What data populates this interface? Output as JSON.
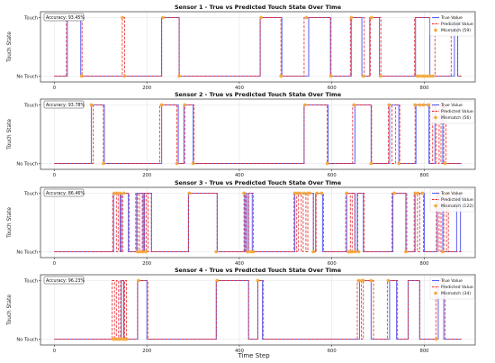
{
  "figure": {
    "xlabel_shared": "Time Step"
  },
  "chart_data": [
    {
      "type": "line",
      "title": "Sensor 1 - True vs Predicted Touch State Over Time",
      "ylabel": "Touch State",
      "xlim": [
        -30,
        910
      ],
      "ylim": [
        -0.1,
        1.1
      ],
      "x_ticks": [
        0,
        200,
        400,
        600,
        800
      ],
      "y_ticks": [
        {
          "value": 0,
          "label": "No Touch"
        },
        {
          "value": 1,
          "label": "Touch"
        }
      ],
      "grid": true,
      "accuracy": "Accuracy: 93.45%",
      "legend": {
        "position": "top-right",
        "entries": [
          "True Value",
          "Predicted Value",
          "Mismatch (59)"
        ]
      },
      "series": [
        {
          "name": "True Value",
          "color": "#5b5bf0",
          "style": "solid",
          "segments": [
            [
              28,
              57
            ],
            [
              232,
              270
            ],
            [
              445,
              492
            ],
            [
              550,
              597
            ],
            [
              642,
              665
            ],
            [
              682,
              703
            ],
            [
              781,
              812
            ],
            [
              865,
              872
            ]
          ]
        },
        {
          "name": "Predicted Value",
          "color": "#e8262a",
          "style": "dashed",
          "segments": [
            [
              26,
              60
            ],
            [
              147,
              152
            ],
            [
              232,
              270
            ],
            [
              445,
              490
            ],
            [
              540,
              598
            ],
            [
              640,
              670
            ],
            [
              683,
              706
            ],
            [
              779,
              823
            ],
            [
              858,
              872
            ]
          ]
        },
        {
          "name": "Mismatch (59)",
          "color": "#f4a93a",
          "style": "markers",
          "points": [
            [
              27,
              1
            ],
            [
              59,
              0
            ],
            [
              147,
              1
            ],
            [
              152,
              0
            ],
            [
              235,
              1
            ],
            [
              270,
              0
            ],
            [
              447,
              1
            ],
            [
              490,
              0
            ],
            [
              545,
              1
            ],
            [
              598,
              0
            ],
            [
              642,
              1
            ],
            [
              668,
              0
            ],
            [
              686,
              1
            ],
            [
              705,
              0
            ],
            [
              785,
              0
            ],
            [
              790,
              0
            ],
            [
              796,
              0
            ],
            [
              800,
              0
            ],
            [
              806,
              0
            ],
            [
              812,
              0
            ],
            [
              818,
              0
            ],
            [
              860,
              1
            ],
            [
              870,
              1
            ]
          ]
        }
      ]
    },
    {
      "type": "line",
      "title": "Sensor 2 - True vs Predicted Touch State Over Time",
      "ylabel": "Touch State",
      "xlim": [
        -30,
        910
      ],
      "ylim": [
        -0.1,
        1.1
      ],
      "x_ticks": [
        0,
        200,
        400,
        600,
        800
      ],
      "y_ticks": [
        {
          "value": 0,
          "label": "No Touch"
        },
        {
          "value": 1,
          "label": "Touch"
        }
      ],
      "grid": true,
      "accuracy": "Accuracy: 93.78%",
      "legend": {
        "position": "top-right",
        "entries": [
          "True Value",
          "Predicted Value",
          "Mismatch (56)"
        ]
      },
      "series": [
        {
          "name": "True Value",
          "color": "#5b5bf0",
          "style": "solid",
          "segments": [
            [
              80,
              108
            ],
            [
              232,
              268
            ],
            [
              280,
              300
            ],
            [
              540,
              592
            ],
            [
              650,
              685
            ],
            [
              725,
              745
            ],
            [
              782,
              810
            ],
            [
              823,
              840
            ]
          ]
        },
        {
          "name": "Predicted Value",
          "color": "#e8262a",
          "style": "dashed",
          "segments": [
            [
              84,
              106
            ],
            [
              228,
              265
            ],
            [
              282,
              302
            ],
            [
              540,
              590
            ],
            [
              645,
              686
            ],
            [
              722,
              730
            ],
            [
              738,
              747
            ],
            [
              780,
              812
            ],
            [
              818,
              826
            ],
            [
              832,
              836
            ],
            [
              842,
              847
            ]
          ]
        },
        {
          "name": "Mismatch (56)",
          "color": "#f4a93a",
          "style": "markers",
          "points": [
            [
              80,
              1
            ],
            [
              106,
              0
            ],
            [
              232,
              1
            ],
            [
              265,
              0
            ],
            [
              282,
              1
            ],
            [
              300,
              0
            ],
            [
              542,
              1
            ],
            [
              590,
              0
            ],
            [
              648,
              1
            ],
            [
              685,
              0
            ],
            [
              724,
              1
            ],
            [
              745,
              0
            ],
            [
              780,
              1
            ],
            [
              790,
              1
            ],
            [
              798,
              1
            ],
            [
              808,
              1
            ],
            [
              814,
              1
            ],
            [
              826,
              1
            ],
            [
              836,
              1
            ],
            [
              845,
              0
            ]
          ]
        }
      ]
    },
    {
      "type": "line",
      "title": "Sensor 3 - True vs Predicted Touch State Over Time",
      "ylabel": "Touch State",
      "xlim": [
        -30,
        910
      ],
      "ylim": [
        -0.1,
        1.1
      ],
      "x_ticks": [
        0,
        200,
        400,
        600,
        800
      ],
      "y_ticks": [
        {
          "value": 0,
          "label": "No Touch"
        },
        {
          "value": 1,
          "label": "Touch"
        }
      ],
      "grid": true,
      "accuracy": "Accuracy: 86.46%",
      "legend": {
        "position": "top-right",
        "entries": [
          "True Value",
          "Predicted Value",
          "Mismatch (122)"
        ]
      },
      "series": [
        {
          "name": "True Value",
          "color": "#5b5bf0",
          "style": "solid",
          "segments": [
            [
              128,
              142
            ],
            [
              145,
              160
            ],
            [
              178,
              192
            ],
            [
              195,
              210
            ],
            [
              290,
              352
            ],
            [
              412,
              416
            ],
            [
              420,
              428
            ],
            [
              520,
              560
            ],
            [
              565,
              580
            ],
            [
              632,
              650
            ],
            [
              655,
              668
            ],
            [
              732,
              760
            ],
            [
              780,
              800
            ],
            [
              828,
              840
            ],
            [
              870,
              878
            ]
          ]
        },
        {
          "name": "Predicted Value",
          "color": "#e8262a",
          "style": "dashed",
          "segments": [
            [
              126,
              134
            ],
            [
              138,
              144
            ],
            [
              148,
              162
            ],
            [
              176,
              180
            ],
            [
              184,
              190
            ],
            [
              194,
              199
            ],
            [
              203,
              210
            ],
            [
              290,
              352
            ],
            [
              410,
              414
            ],
            [
              420,
              430
            ],
            [
              518,
              524
            ],
            [
              528,
              534
            ],
            [
              538,
              544
            ],
            [
              548,
              560
            ],
            [
              566,
              582
            ],
            [
              630,
              640
            ],
            [
              644,
              650
            ],
            [
              656,
              670
            ],
            [
              730,
              762
            ],
            [
              778,
              785
            ],
            [
              790,
              798
            ],
            [
              826,
              832
            ],
            [
              836,
              842
            ],
            [
              848,
              852
            ]
          ]
        },
        {
          "name": "Mismatch (122)",
          "color": "#f4a93a",
          "style": "markers",
          "points": [
            [
              130,
              1
            ],
            [
              136,
              1
            ],
            [
              142,
              1
            ],
            [
              150,
              1
            ],
            [
              180,
              0
            ],
            [
              186,
              0
            ],
            [
              192,
              0
            ],
            [
              198,
              0
            ],
            [
              292,
              1
            ],
            [
              350,
              0
            ],
            [
              410,
              1
            ],
            [
              418,
              0
            ],
            [
              425,
              0
            ],
            [
              430,
              0
            ],
            [
              520,
              1
            ],
            [
              526,
              1
            ],
            [
              532,
              1
            ],
            [
              540,
              1
            ],
            [
              548,
              1
            ],
            [
              552,
              1
            ],
            [
              560,
              0
            ],
            [
              568,
              1
            ],
            [
              578,
              1
            ],
            [
              632,
              1
            ],
            [
              636,
              0
            ],
            [
              640,
              0
            ],
            [
              644,
              0
            ],
            [
              650,
              0
            ],
            [
              658,
              0
            ],
            [
              735,
              1
            ],
            [
              760,
              0
            ],
            [
              780,
              1
            ],
            [
              786,
              1
            ],
            [
              796,
              1
            ],
            [
              828,
              1
            ],
            [
              834,
              1
            ],
            [
              840,
              0
            ],
            [
              846,
              1
            ],
            [
              852,
              1
            ],
            [
              872,
              1
            ]
          ]
        }
      ]
    },
    {
      "type": "line",
      "title": "Sensor 4 - True vs Predicted Touch State Over Time",
      "ylabel": "Touch State",
      "xlim": [
        -30,
        910
      ],
      "ylim": [
        -0.1,
        1.1
      ],
      "x_ticks": [
        0,
        200,
        400,
        600,
        800
      ],
      "y_ticks": [
        {
          "value": 0,
          "label": "No Touch"
        },
        {
          "value": 1,
          "label": "Touch"
        }
      ],
      "grid": true,
      "accuracy": "Accuracy: 96.23%",
      "legend": {
        "position": "top-right",
        "entries": [
          "True Value",
          "Predicted Value",
          "Mismatch (34)"
        ]
      },
      "series": [
        {
          "name": "True Value",
          "color": "#5b5bf0",
          "style": "solid",
          "segments": [
            [
              145,
              150
            ],
            [
              180,
              200
            ],
            [
              350,
              420
            ],
            [
              440,
              450
            ],
            [
              660,
              685
            ],
            [
              725,
              740
            ],
            [
              765,
              790
            ],
            [
              830,
              842
            ]
          ]
        },
        {
          "name": "Predicted Value",
          "color": "#e8262a",
          "style": "dashed",
          "segments": [
            [
              125,
              130
            ],
            [
              134,
              139
            ],
            [
              143,
              150
            ],
            [
              152,
              156
            ],
            [
              180,
              202
            ],
            [
              350,
              420
            ],
            [
              440,
              452
            ],
            [
              655,
              664
            ],
            [
              668,
              690
            ],
            [
              720,
              742
            ],
            [
              765,
              790
            ],
            [
              825,
              845
            ]
          ]
        },
        {
          "name": "Mismatch (34)",
          "color": "#f4a93a",
          "style": "markers",
          "points": [
            [
              127,
              0
            ],
            [
              132,
              0
            ],
            [
              137,
              0
            ],
            [
              141,
              0
            ],
            [
              147,
              0
            ],
            [
              152,
              0
            ],
            [
              156,
              0
            ],
            [
              182,
              1
            ],
            [
              352,
              1
            ],
            [
              440,
              1
            ],
            [
              658,
              1
            ],
            [
              665,
              1
            ],
            [
              668,
              1
            ],
            [
              685,
              1
            ],
            [
              722,
              1
            ],
            [
              826,
              0
            ],
            [
              842,
              1
            ]
          ]
        }
      ]
    }
  ]
}
